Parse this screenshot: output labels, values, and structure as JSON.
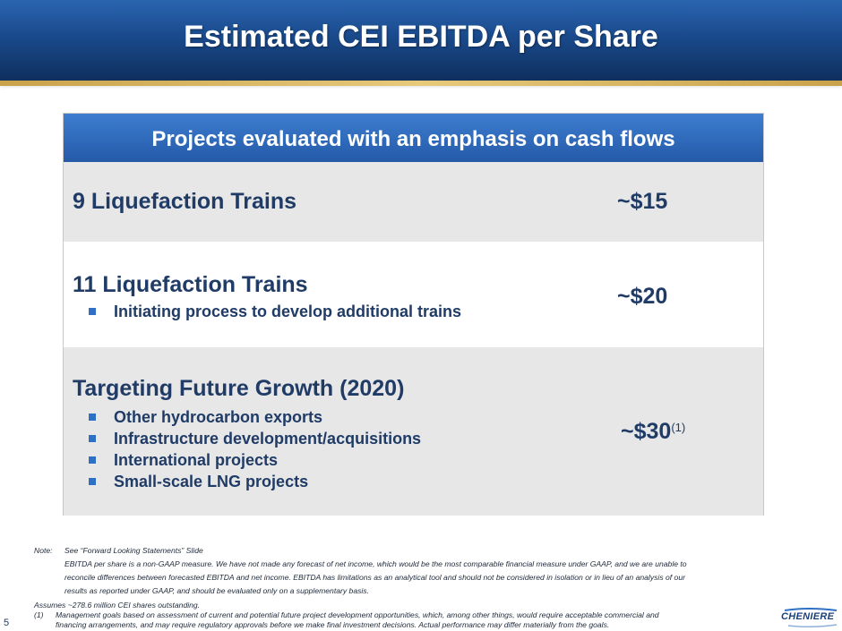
{
  "page": {
    "title": "Estimated CEI EBITDA per Share",
    "page_number": "5"
  },
  "table": {
    "header": "Projects evaluated with an emphasis on cash flows",
    "rows": [
      {
        "label": "9 Liquefaction Trains",
        "value": "~$15",
        "bullets": []
      },
      {
        "label": "11 Liquefaction Trains",
        "value": "~$20",
        "bullets": [
          "Initiating process to develop additional trains"
        ]
      },
      {
        "label": "Targeting Future Growth (2020)",
        "value": "~$30",
        "footnote_ref": "(1)",
        "bullets": [
          "Other hydrocarbon exports",
          "Infrastructure development/acquisitions",
          "International projects",
          "Small-scale LNG projects"
        ]
      }
    ]
  },
  "notes": {
    "note_label": "Note:",
    "note_line1": "See “Forward Looking Statements” Slide",
    "note_line2": "EBITDA per share is a non-GAAP measure. We have not made any forecast of net income, which would be the most comparable financial measure under GAAP, and we are unable to",
    "note_line3": "reconcile differences between forecasted EBITDA and net income. EBITDA has limitations as an analytical tool and should not be considered in isolation or in lieu of an analysis of our",
    "note_line4": "results as reported under GAAP, and should be evaluated only on a supplementary basis.",
    "assumes": "Assumes ~278.6 million CEI shares outstanding.",
    "fn_label": "(1)",
    "fn_line1": "Management goals based on assessment of current and potential future project development opportunities, which, among other things, would require acceptable commercial and",
    "fn_line2": "financing arrangements, and may require regulatory approvals before we make final investment decisions. Actual performance may differ materially from the goals."
  },
  "logo": {
    "text": "CHENIERE"
  }
}
